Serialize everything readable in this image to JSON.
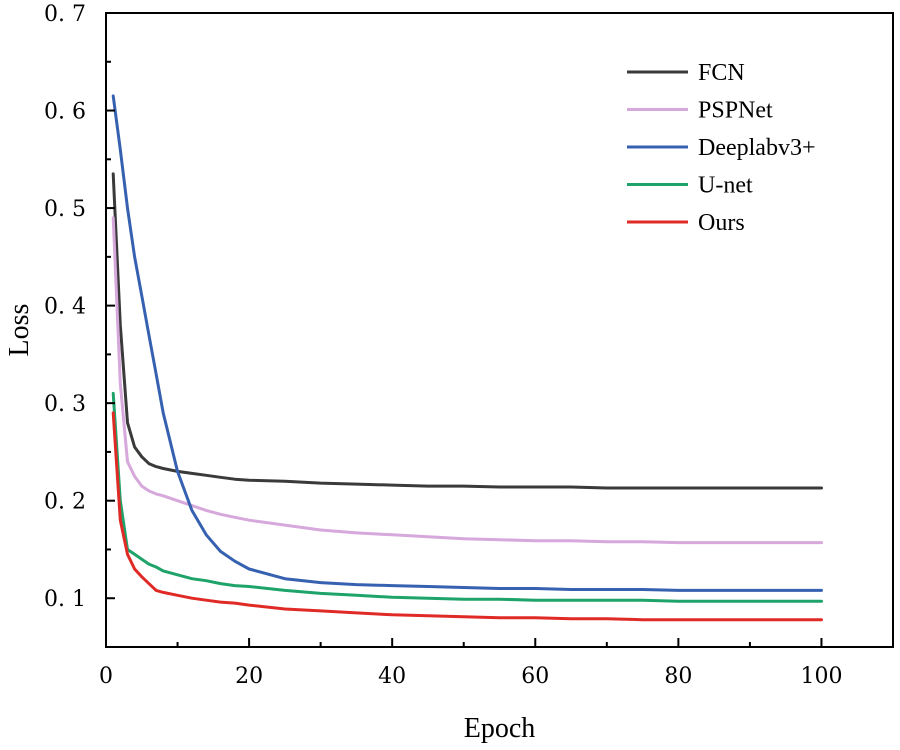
{
  "chart_data": {
    "type": "line",
    "title": "",
    "xlabel": "Epoch",
    "ylabel": "Loss",
    "xlim": [
      0,
      110
    ],
    "ylim": [
      0.05,
      0.7
    ],
    "xticks": [
      0,
      20,
      40,
      60,
      80,
      100
    ],
    "xtick_labels": [
      "0",
      "20",
      "40",
      "60",
      "80",
      "100"
    ],
    "yticks": [
      0.1,
      0.2,
      0.3,
      0.4,
      0.5,
      0.6,
      0.7
    ],
    "ytick_labels": [
      "0. 1",
      "0. 2",
      "0. 3",
      "0. 4",
      "0. 5",
      "0. 6",
      "0. 7"
    ],
    "grid": false,
    "legend_position": "top-right",
    "x": [
      1,
      2,
      3,
      4,
      5,
      6,
      7,
      8,
      10,
      12,
      14,
      16,
      18,
      20,
      25,
      30,
      35,
      40,
      45,
      50,
      55,
      60,
      65,
      70,
      75,
      80,
      85,
      90,
      95,
      100
    ],
    "series": [
      {
        "name": "FCN",
        "color": "#3a3a3a",
        "values": [
          0.535,
          0.38,
          0.28,
          0.255,
          0.245,
          0.238,
          0.235,
          0.233,
          0.23,
          0.228,
          0.226,
          0.224,
          0.222,
          0.221,
          0.22,
          0.218,
          0.217,
          0.216,
          0.215,
          0.215,
          0.214,
          0.214,
          0.214,
          0.213,
          0.213,
          0.213,
          0.213,
          0.213,
          0.213,
          0.213
        ]
      },
      {
        "name": "PSPNet",
        "color": "#d6a8db",
        "values": [
          0.49,
          0.32,
          0.24,
          0.225,
          0.215,
          0.21,
          0.207,
          0.205,
          0.2,
          0.195,
          0.19,
          0.186,
          0.183,
          0.18,
          0.175,
          0.17,
          0.167,
          0.165,
          0.163,
          0.161,
          0.16,
          0.159,
          0.159,
          0.158,
          0.158,
          0.157,
          0.157,
          0.157,
          0.157,
          0.157
        ]
      },
      {
        "name": "Deeplabv3+",
        "color": "#3661b0",
        "values": [
          0.615,
          0.56,
          0.5,
          0.45,
          0.41,
          0.37,
          0.33,
          0.29,
          0.23,
          0.19,
          0.165,
          0.148,
          0.138,
          0.13,
          0.12,
          0.116,
          0.114,
          0.113,
          0.112,
          0.111,
          0.11,
          0.11,
          0.109,
          0.109,
          0.109,
          0.108,
          0.108,
          0.108,
          0.108,
          0.108
        ]
      },
      {
        "name": "U-net",
        "color": "#1ea36a",
        "values": [
          0.31,
          0.2,
          0.15,
          0.145,
          0.14,
          0.135,
          0.132,
          0.128,
          0.124,
          0.12,
          0.118,
          0.115,
          0.113,
          0.112,
          0.108,
          0.105,
          0.103,
          0.101,
          0.1,
          0.099,
          0.099,
          0.098,
          0.098,
          0.098,
          0.098,
          0.097,
          0.097,
          0.097,
          0.097,
          0.097
        ]
      },
      {
        "name": "Ours",
        "color": "#e02a26",
        "values": [
          0.29,
          0.18,
          0.145,
          0.13,
          0.122,
          0.115,
          0.108,
          0.106,
          0.103,
          0.1,
          0.098,
          0.096,
          0.095,
          0.093,
          0.089,
          0.087,
          0.085,
          0.083,
          0.082,
          0.081,
          0.08,
          0.08,
          0.079,
          0.079,
          0.078,
          0.078,
          0.078,
          0.078,
          0.078,
          0.078
        ]
      }
    ]
  }
}
